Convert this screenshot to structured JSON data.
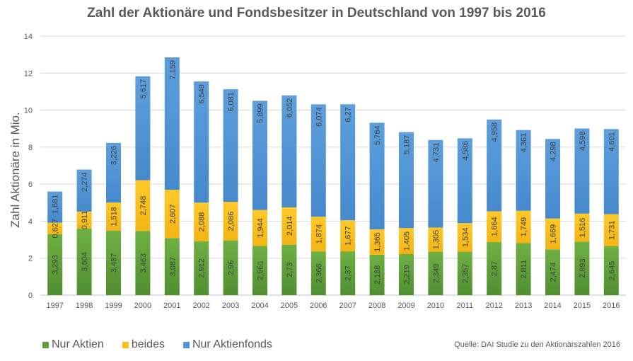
{
  "chart_data": {
    "type": "bar",
    "stacked": true,
    "title": "Zahl der Aktionäre und Fondsbesitzer in Deutschland von 1997 bis 2016",
    "xlabel": "",
    "ylabel": "Zahl Aktionäre in Mio.",
    "ylim": [
      0,
      14
    ],
    "yticks": [
      0,
      2,
      4,
      6,
      8,
      10,
      12,
      14
    ],
    "grid": true,
    "legend_position": "bottom-left",
    "categories": [
      "1997",
      "1998",
      "1999",
      "2000",
      "2001",
      "2002",
      "2003",
      "2004",
      "2005",
      "2006",
      "2007",
      "2008",
      "2009",
      "2010",
      "2011",
      "2012",
      "2013",
      "2014",
      "2015",
      "2016"
    ],
    "series": [
      {
        "name": "Nur Aktien",
        "color": "#5b9e3a",
        "values": [
          3.293,
          3.604,
          3.487,
          3.463,
          3.087,
          2.912,
          2.96,
          2.661,
          2.73,
          2.366,
          2.37,
          2.188,
          2.219,
          2.349,
          2.357,
          2.87,
          2.811,
          2.474,
          2.893,
          2.645
        ],
        "labels": [
          "3,293",
          "3,604",
          "3,487",
          "3,463",
          "3,087",
          "2,912",
          "2,96",
          "2,661",
          "2,73",
          "2,366",
          "2,37",
          "2,188",
          "2,219",
          "2,349",
          "2,357",
          "2,87",
          "2,811",
          "2,474",
          "2,893",
          "2,645"
        ]
      },
      {
        "name": "beides",
        "color": "#fbbe1f",
        "values": [
          0.627,
          0.911,
          1.518,
          2.748,
          2.607,
          2.088,
          2.086,
          1.944,
          2.014,
          1.874,
          1.677,
          1.365,
          1.405,
          1.305,
          1.534,
          1.664,
          1.749,
          1.669,
          1.516,
          1.731
        ],
        "labels": [
          "0,627",
          "0,911",
          "1,518",
          "2,748",
          "2,607",
          "2,088",
          "2,086",
          "1,944",
          "2,014",
          "1,874",
          "1,677",
          "1,365",
          "1,405",
          "1,305",
          "1,534",
          "1,664",
          "1,749",
          "1,669",
          "1,516",
          "1,731"
        ]
      },
      {
        "name": "Nur Aktienfonds",
        "color": "#5296d6",
        "values": [
          1.681,
          2.274,
          3.226,
          5.617,
          7.159,
          6.549,
          6.081,
          5.899,
          6.052,
          6.074,
          6.27,
          5.764,
          5.187,
          4.731,
          4.586,
          4.958,
          4.361,
          4.298,
          4.598,
          4.601
        ],
        "labels": [
          "1,681",
          "2,274",
          "3,226",
          "5,617",
          "7,159",
          "6,549",
          "6,081",
          "5,899",
          "6,052",
          "6,074",
          "6,27",
          "5,764",
          "5,187",
          "4,731",
          "4,586",
          "4,958",
          "4,361",
          "4,298",
          "4,598",
          "4,601"
        ]
      }
    ]
  },
  "legend": {
    "items": [
      {
        "label": "Nur Aktien",
        "color": "#5b9e3a"
      },
      {
        "label": "beides",
        "color": "#fbbe1f"
      },
      {
        "label": "Nur Aktienfonds",
        "color": "#5296d6"
      }
    ]
  },
  "source": "Quelle: DAI Studie zu den Aktionärszahlen 2016"
}
